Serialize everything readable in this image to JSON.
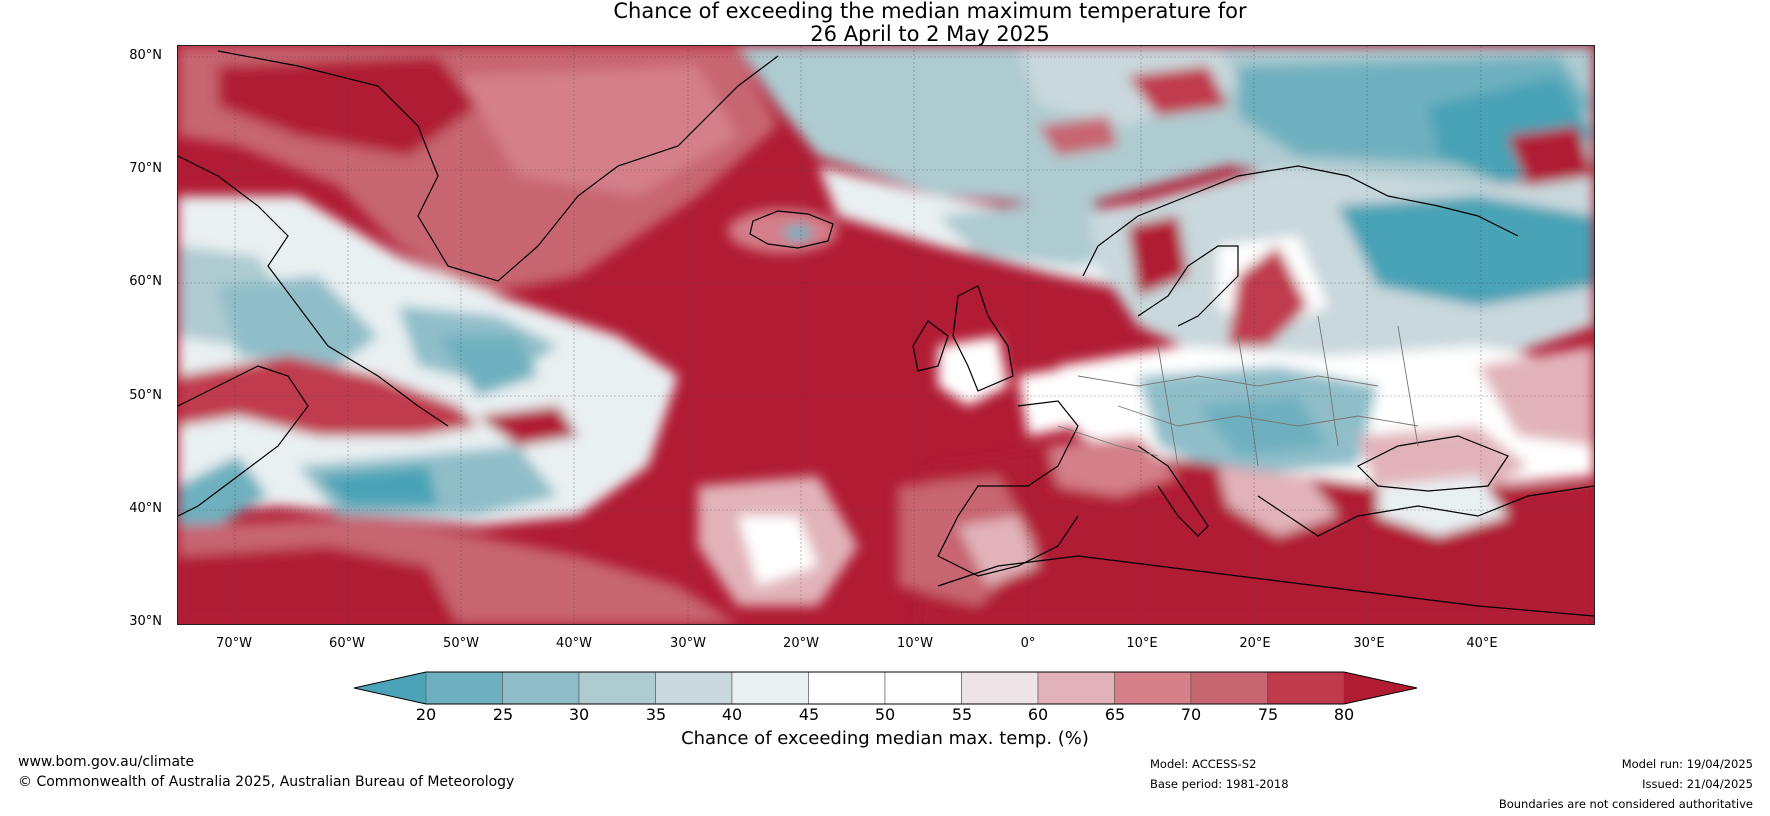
{
  "title": {
    "line1": "Chance of exceeding the median maximum temperature for",
    "line2": "26 April to 2 May 2025"
  },
  "map": {
    "lat_labels": [
      "80°N",
      "70°N",
      "60°N",
      "50°N",
      "40°N",
      "30°N"
    ],
    "lon_labels": [
      "70°W",
      "60°W",
      "50°W",
      "40°W",
      "30°W",
      "20°W",
      "10°W",
      "0°",
      "10°E",
      "20°E",
      "30°E",
      "40°E"
    ]
  },
  "colorbar": {
    "ticks": [
      "20",
      "25",
      "30",
      "35",
      "40",
      "45",
      "50",
      "55",
      "60",
      "65",
      "70",
      "75",
      "80"
    ],
    "label": "Chance of exceeding median max. temp. (%)",
    "colors": [
      "#4aa3b6",
      "#6eb0bf",
      "#8fbec9",
      "#aecbd0",
      "#c9d8dc",
      "#e9f0f2",
      "#ffffff",
      "#ffffff",
      "#ece4e6",
      "#e1b3b9",
      "#d47f8a",
      "#c76571",
      "#c03a4e",
      "#b11b34"
    ]
  },
  "footer": {
    "website": "www.bom.gov.au/climate",
    "copyright": "© Commonwealth of Australia 2025, Australian Bureau of Meteorology",
    "model": "Model: ACCESS-S2",
    "base_period": "Base period: 1981-2018",
    "model_run": "Model run: 19/04/2025",
    "issued": "Issued: 21/04/2025",
    "disclaimer": "Boundaries are not considered authoritative"
  }
}
